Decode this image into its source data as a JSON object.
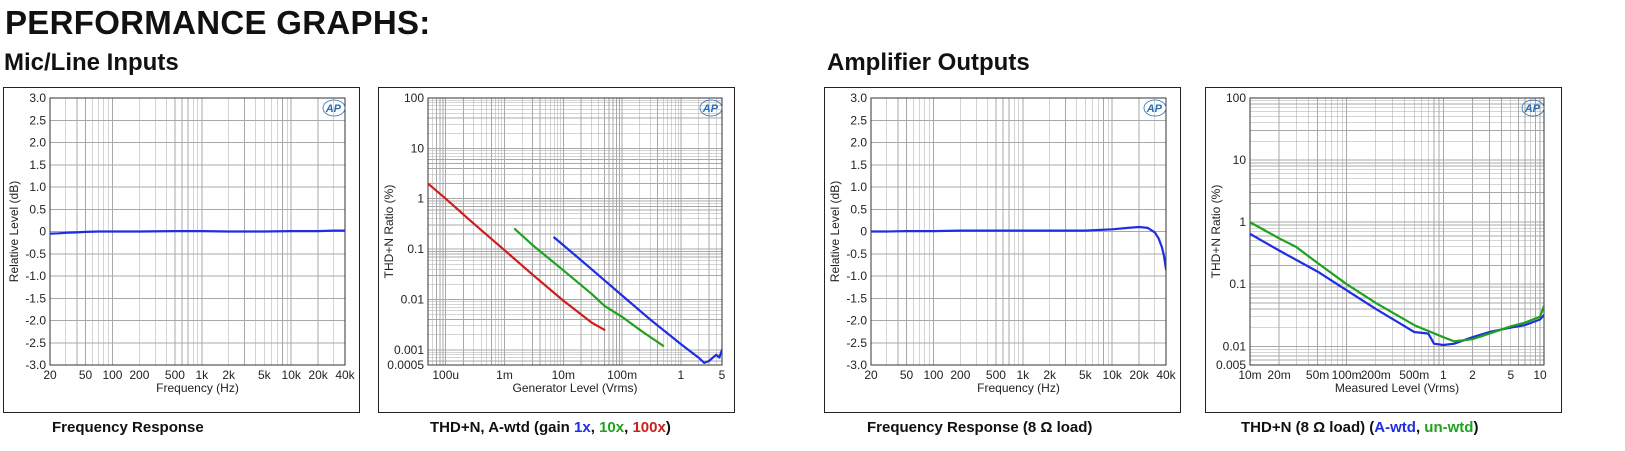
{
  "page": {
    "title": "PERFORMANCE GRAPHS:",
    "sections": [
      "Mic/Line Inputs",
      "Amplifier Outputs"
    ]
  },
  "colors": {
    "blue": "#1f2ee0",
    "green": "#1fa21f",
    "red": "#cc1f1f",
    "grid": "#a8a8a8",
    "frame": "#333333"
  },
  "logo_text": "AP",
  "captions": {
    "c1": "Frequency Response",
    "c2_prefix": "THD+N, A-wtd (gain ",
    "c2_1x": "1x",
    "c2_sep1": ", ",
    "c2_10x": "10x",
    "c2_sep2": ", ",
    "c2_100x": "100x",
    "c2_suffix": ")",
    "c3": "Frequency Response (8 Ω load)",
    "c4_prefix": "THD+N (8 Ω load) (",
    "c4_awtd": "A-wtd",
    "c4_sep": ", ",
    "c4_unwtd": "un-wtd",
    "c4_suffix": ")"
  },
  "chart_data": [
    {
      "type": "line",
      "xlabel": "Frequency (Hz)",
      "ylabel": "Relative Level (dB)",
      "xscale": "log",
      "xlim": [
        20,
        40000
      ],
      "ylim": [
        -3.0,
        3.0
      ],
      "xticks": [
        [
          20,
          "20"
        ],
        [
          50,
          "50"
        ],
        [
          100,
          "100"
        ],
        [
          200,
          "200"
        ],
        [
          500,
          "500"
        ],
        [
          1000,
          "1k"
        ],
        [
          2000,
          "2k"
        ],
        [
          5000,
          "5k"
        ],
        [
          10000,
          "10k"
        ],
        [
          20000,
          "20k"
        ],
        [
          40000,
          "40k"
        ]
      ],
      "yticks": [
        [
          3,
          "3.0"
        ],
        [
          2.5,
          "2.5"
        ],
        [
          2,
          "2.0"
        ],
        [
          1.5,
          "1.5"
        ],
        [
          1,
          "1.0"
        ],
        [
          0.5,
          "0.5"
        ],
        [
          0,
          "0"
        ],
        [
          -0.5,
          "-0.5"
        ],
        [
          -1,
          "-1.0"
        ],
        [
          -1.5,
          "-1.5"
        ],
        [
          -2,
          "-2.0"
        ],
        [
          -2.5,
          "-2.5"
        ],
        [
          -3,
          "-3.0"
        ]
      ],
      "grid": true,
      "series": [
        {
          "color": "blue",
          "x": [
            20,
            25,
            30,
            40,
            50,
            70,
            100,
            200,
            500,
            1000,
            2000,
            5000,
            10000,
            20000,
            30000,
            40000
          ],
          "y": [
            -0.05,
            -0.04,
            -0.03,
            -0.02,
            -0.01,
            0.0,
            0.0,
            0.0,
            0.01,
            0.01,
            0.0,
            0.0,
            0.01,
            0.01,
            0.02,
            0.02
          ]
        }
      ]
    },
    {
      "type": "line",
      "xlabel": "Generator Level (Vrms)",
      "ylabel": "THD+N Ratio (%)",
      "xscale": "log",
      "xlim": [
        5e-05,
        5
      ],
      "yscale": "log",
      "ylim": [
        0.0005,
        100
      ],
      "xticks": [
        [
          0.0001,
          "100u"
        ],
        [
          0.001,
          "1m"
        ],
        [
          0.01,
          "10m"
        ],
        [
          0.1,
          "100m"
        ],
        [
          1,
          "1"
        ],
        [
          5,
          "5"
        ]
      ],
      "yticks": [
        [
          100,
          "100"
        ],
        [
          10,
          "10"
        ],
        [
          1,
          "1"
        ],
        [
          0.1,
          "0.1"
        ],
        [
          0.01,
          "0.01"
        ],
        [
          0.001,
          "0.001"
        ],
        [
          0.0005,
          "0.0005"
        ]
      ],
      "grid": true,
      "series": [
        {
          "color": "red",
          "x": [
            5e-05,
            0.0001,
            0.0003,
            0.001,
            0.003,
            0.01,
            0.03,
            0.05
          ],
          "y": [
            2.0,
            1.0,
            0.32,
            0.095,
            0.031,
            0.0095,
            0.0035,
            0.0025
          ]
        },
        {
          "color": "green",
          "x": [
            0.0015,
            0.003,
            0.01,
            0.03,
            0.05,
            0.1,
            0.2,
            0.3,
            0.5
          ],
          "y": [
            0.25,
            0.12,
            0.038,
            0.013,
            0.0075,
            0.0045,
            0.0025,
            0.0018,
            0.0012
          ]
        },
        {
          "color": "blue",
          "x": [
            0.007,
            0.01,
            0.03,
            0.1,
            0.3,
            1,
            1.5,
            2,
            2.5,
            3,
            3.5,
            4,
            4.5,
            5
          ],
          "y": [
            0.17,
            0.12,
            0.04,
            0.012,
            0.004,
            0.0013,
            0.0009,
            0.0007,
            0.00055,
            0.0006,
            0.0007,
            0.0008,
            0.0007,
            0.001
          ]
        }
      ]
    },
    {
      "type": "line",
      "xlabel": "Frequency (Hz)",
      "ylabel": "Relative Level (dB)",
      "xscale": "log",
      "xlim": [
        20,
        40000
      ],
      "ylim": [
        -3.0,
        3.0
      ],
      "xticks": [
        [
          20,
          "20"
        ],
        [
          50,
          "50"
        ],
        [
          100,
          "100"
        ],
        [
          200,
          "200"
        ],
        [
          500,
          "500"
        ],
        [
          1000,
          "1k"
        ],
        [
          2000,
          "2k"
        ],
        [
          5000,
          "5k"
        ],
        [
          10000,
          "10k"
        ],
        [
          20000,
          "20k"
        ],
        [
          40000,
          "40k"
        ]
      ],
      "yticks": [
        [
          3,
          "3.0"
        ],
        [
          2.5,
          "2.5"
        ],
        [
          2,
          "2.0"
        ],
        [
          1.5,
          "1.5"
        ],
        [
          1,
          "1.0"
        ],
        [
          0.5,
          "0.5"
        ],
        [
          0,
          "0"
        ],
        [
          -0.5,
          "-0.5"
        ],
        [
          -1,
          "-1.0"
        ],
        [
          -1.5,
          "-1.5"
        ],
        [
          -2,
          "-2.0"
        ],
        [
          -2.5,
          "-2.5"
        ],
        [
          -3,
          "-3.0"
        ]
      ],
      "grid": true,
      "series": [
        {
          "color": "blue",
          "x": [
            20,
            30,
            50,
            100,
            200,
            500,
            1000,
            2000,
            5000,
            10000,
            15000,
            20000,
            25000,
            30000,
            33000,
            36000,
            38000,
            40000
          ],
          "y": [
            0.0,
            0.0,
            0.01,
            0.01,
            0.02,
            0.02,
            0.02,
            0.02,
            0.02,
            0.05,
            0.08,
            0.1,
            0.08,
            -0.02,
            -0.15,
            -0.35,
            -0.55,
            -0.85
          ]
        }
      ]
    },
    {
      "type": "line",
      "xlabel": "Measured Level (Vrms)",
      "ylabel": "THD+N Ratio (%)",
      "xscale": "log",
      "xlim": [
        0.01,
        11
      ],
      "yscale": "log",
      "ylim": [
        0.005,
        100
      ],
      "xticks": [
        [
          0.01,
          "10m"
        ],
        [
          0.02,
          "20m"
        ],
        [
          0.05,
          "50m"
        ],
        [
          0.1,
          "100m"
        ],
        [
          0.2,
          "200m"
        ],
        [
          0.5,
          "500m"
        ],
        [
          1,
          "1"
        ],
        [
          2,
          "2"
        ],
        [
          5,
          "5"
        ],
        [
          10,
          "10"
        ]
      ],
      "yticks": [
        [
          100,
          "100"
        ],
        [
          10,
          "10"
        ],
        [
          1,
          "1"
        ],
        [
          0.1,
          "0.1"
        ],
        [
          0.01,
          "0.01"
        ],
        [
          0.005,
          "0.005"
        ]
      ],
      "grid": true,
      "series": [
        {
          "color": "blue",
          "x": [
            0.01,
            0.02,
            0.05,
            0.1,
            0.2,
            0.5,
            0.7,
            0.8,
            1,
            1.3,
            2,
            3,
            5,
            7,
            10,
            11
          ],
          "y": [
            0.65,
            0.35,
            0.16,
            0.08,
            0.04,
            0.017,
            0.016,
            0.011,
            0.0105,
            0.011,
            0.014,
            0.017,
            0.02,
            0.022,
            0.027,
            0.032
          ]
        },
        {
          "color": "green",
          "x": [
            0.01,
            0.02,
            0.03,
            0.05,
            0.1,
            0.2,
            0.5,
            1,
            1.3,
            2,
            3,
            5,
            7,
            10,
            11
          ],
          "y": [
            1.0,
            0.55,
            0.4,
            0.22,
            0.1,
            0.05,
            0.022,
            0.014,
            0.012,
            0.013,
            0.016,
            0.021,
            0.024,
            0.03,
            0.045
          ]
        }
      ]
    }
  ]
}
